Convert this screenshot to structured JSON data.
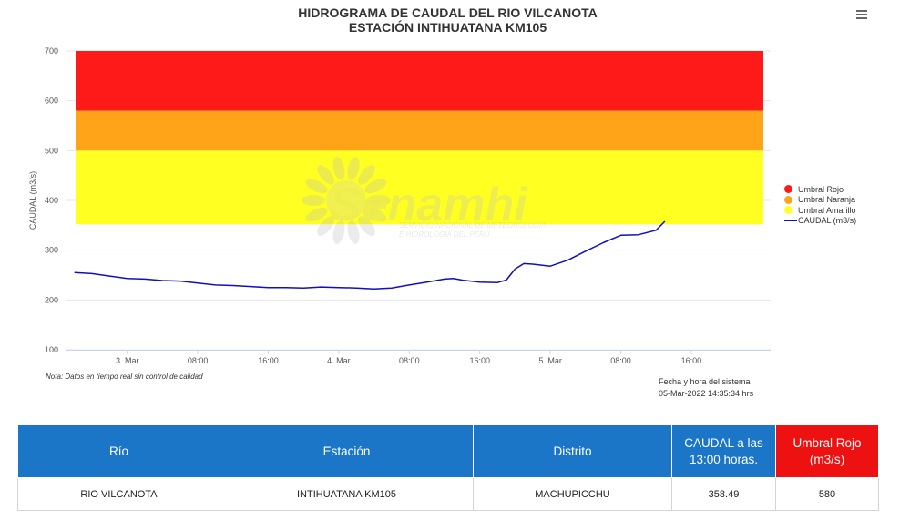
{
  "title_line1": "HIDROGRAMA DE CAUDAL DEL RIO VILCANOTA",
  "title_line2": "ESTACIÓN INTIHUATANA KM105",
  "note": "Nota: Datos en tiempo real sin control de calidad",
  "system_date_label": "Fecha y hora del sistema",
  "system_date_value": "05-Mar-2022 14:35:34 hrs",
  "watermark": {
    "name": "Senamhi",
    "tagline1": "SERVICIO NACIONAL DE METEOROLOGÍA",
    "tagline2": "E HIDROLOGÍA DEL PERÚ"
  },
  "colors": {
    "rojo": "#ff1a1a",
    "naranja": "#ffa318",
    "amarillo": "#ffff22",
    "caudal": "#1010c0",
    "header_blue": "#1b76c8",
    "header_red": "#ee1111"
  },
  "chart_data": {
    "type": "line",
    "ylabel": "CAUDAL (m3/s)",
    "ylim": [
      100,
      700
    ],
    "yticks": [
      100,
      200,
      300,
      400,
      500,
      600,
      700
    ],
    "xlim_hours": [
      -7,
      73
    ],
    "xticks": [
      {
        "h": 0,
        "label": "3. Mar"
      },
      {
        "h": 8,
        "label": "08:00"
      },
      {
        "h": 16,
        "label": "16:00"
      },
      {
        "h": 24,
        "label": "4. Mar"
      },
      {
        "h": 32,
        "label": "08:00"
      },
      {
        "h": 40,
        "label": "16:00"
      },
      {
        "h": 48,
        "label": "5. Mar"
      },
      {
        "h": 56,
        "label": "08:00"
      },
      {
        "h": 64,
        "label": "16:00"
      }
    ],
    "bands": [
      {
        "name": "Umbral Rojo",
        "from": 580,
        "to": 700,
        "color": "#ff1a1a"
      },
      {
        "name": "Umbral Naranja",
        "from": 500,
        "to": 580,
        "color": "#ffa318"
      },
      {
        "name": "Umbral Amarillo",
        "from": 352,
        "to": 500,
        "color": "#ffff22"
      }
    ],
    "series": [
      {
        "name": "CAUDAL (m3/s)",
        "color": "#1010c0",
        "x": [
          -6,
          -4,
          -2,
          0,
          2,
          4,
          6,
          8,
          10,
          12,
          14,
          16,
          18,
          20,
          22,
          24,
          26,
          28,
          30,
          32,
          34,
          36,
          37,
          38,
          40,
          42,
          43,
          44,
          45,
          46,
          48,
          50,
          52,
          54,
          56,
          58,
          60,
          61
        ],
        "values": [
          255,
          253,
          248,
          243,
          242,
          239,
          238,
          234,
          230,
          229,
          227,
          225,
          225,
          224,
          226,
          225,
          224,
          222,
          224,
          230,
          236,
          242,
          243,
          240,
          236,
          235,
          240,
          262,
          273,
          272,
          268,
          280,
          298,
          315,
          330,
          331,
          340,
          358
        ]
      }
    ]
  },
  "legend": [
    {
      "label": "Umbral Rojo",
      "color": "#ff1a1a",
      "kind": "dot"
    },
    {
      "label": "Umbral Naranja",
      "color": "#ffa318",
      "kind": "dot"
    },
    {
      "label": "Umbral Amarillo",
      "color": "#ffff22",
      "kind": "dot"
    },
    {
      "label": "CAUDAL (m3/s)",
      "color": "#1010c0",
      "kind": "line"
    }
  ],
  "table": {
    "headers": [
      "Río",
      "Estación",
      "Distrito",
      "CAUDAL a las 13:00 horas.",
      "Umbral Rojo (m3/s)"
    ],
    "row": [
      "RIO VILCANOTA",
      "INTIHUATANA KM105",
      "MACHUPICCHU",
      "358.49",
      "580"
    ]
  }
}
